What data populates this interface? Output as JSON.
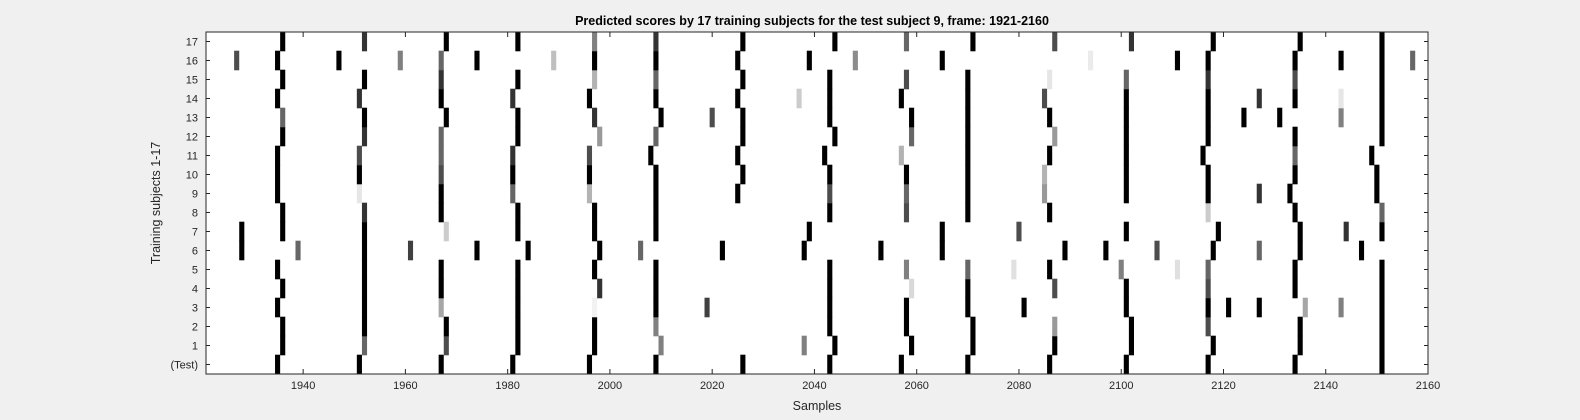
{
  "chart_data": {
    "type": "heatmap",
    "title": "Predicted scores by 17 training subjects for the test subject 9, frame: 1921-2160",
    "xlabel": "Samples",
    "ylabel": "Training subjects 1-17",
    "xlim": [
      1921,
      2160
    ],
    "x_ticks": [
      1940,
      1960,
      1980,
      2000,
      2020,
      2040,
      2060,
      2080,
      2100,
      2120,
      2140,
      2160
    ],
    "rows": [
      "(Test)",
      "1",
      "2",
      "3",
      "4",
      "5",
      "6",
      "7",
      "8",
      "9",
      "10",
      "11",
      "12",
      "13",
      "14",
      "15",
      "16",
      "17"
    ],
    "grid": false,
    "colormap": "white-to-black (intensity = predicted score)",
    "score_range": [
      0,
      1
    ],
    "cells": [
      {
        "row": "(Test)",
        "marks": [
          [
            1935,
            1
          ],
          [
            1951,
            1
          ],
          [
            1967,
            1
          ],
          [
            1981,
            1
          ],
          [
            1996,
            1
          ],
          [
            2009,
            1
          ],
          [
            2026,
            1
          ],
          [
            2043,
            1
          ],
          [
            2057,
            1
          ],
          [
            2070,
            1
          ],
          [
            2086,
            1
          ],
          [
            2101,
            1
          ],
          [
            2117,
            1
          ],
          [
            2134,
            1
          ],
          [
            2151,
            1
          ]
        ]
      },
      {
        "row": "1",
        "marks": [
          [
            1936,
            1
          ],
          [
            1952,
            0.6
          ],
          [
            1968,
            0.7
          ],
          [
            1982,
            1
          ],
          [
            1997,
            1
          ],
          [
            2010,
            0.5
          ],
          [
            2038,
            0.5
          ],
          [
            2044,
            1
          ],
          [
            2059,
            1
          ],
          [
            2071,
            1
          ],
          [
            2087,
            1
          ],
          [
            2102,
            1
          ],
          [
            2118,
            1
          ],
          [
            2135,
            1
          ],
          [
            2151,
            1
          ]
        ]
      },
      {
        "row": "2",
        "marks": [
          [
            1936,
            1
          ],
          [
            1952,
            1
          ],
          [
            1968,
            1
          ],
          [
            1982,
            1
          ],
          [
            1997,
            1
          ],
          [
            2009,
            0.5
          ],
          [
            2043,
            1
          ],
          [
            2058,
            1
          ],
          [
            2071,
            1
          ],
          [
            2087,
            0.4
          ],
          [
            2102,
            1
          ],
          [
            2117,
            0.7
          ],
          [
            2135,
            1
          ],
          [
            2151,
            1
          ]
        ]
      },
      {
        "row": "3",
        "marks": [
          [
            1935,
            1
          ],
          [
            1952,
            1
          ],
          [
            1967,
            0.35
          ],
          [
            1982,
            1
          ],
          [
            1997,
            0.05
          ],
          [
            2009,
            1
          ],
          [
            2019,
            0.75
          ],
          [
            2043,
            1
          ],
          [
            2058,
            1
          ],
          [
            2070,
            1
          ],
          [
            2081,
            1
          ],
          [
            2101,
            1
          ],
          [
            2117,
            1
          ],
          [
            2121,
            1
          ],
          [
            2127,
            1
          ],
          [
            2136,
            0.35
          ],
          [
            2143,
            0.5
          ],
          [
            2151,
            1
          ]
        ]
      },
      {
        "row": "4",
        "marks": [
          [
            1936,
            1
          ],
          [
            1952,
            1
          ],
          [
            1967,
            1
          ],
          [
            1982,
            1
          ],
          [
            1998,
            0.8
          ],
          [
            2009,
            1
          ],
          [
            2043,
            1
          ],
          [
            2059,
            0.15
          ],
          [
            2070,
            1
          ],
          [
            2087,
            0.7
          ],
          [
            2101,
            1
          ],
          [
            2117,
            0.7
          ],
          [
            2134,
            1
          ],
          [
            2151,
            1
          ]
        ]
      },
      {
        "row": "5",
        "marks": [
          [
            1935,
            1
          ],
          [
            1952,
            1
          ],
          [
            1967,
            1
          ],
          [
            1982,
            1
          ],
          [
            1997,
            1
          ],
          [
            2009,
            1
          ],
          [
            2043,
            1
          ],
          [
            2058,
            0.5
          ],
          [
            2070,
            0.6
          ],
          [
            2079,
            0.12
          ],
          [
            2086,
            1
          ],
          [
            2100,
            0.5
          ],
          [
            2111,
            0.12
          ],
          [
            2117,
            0.6
          ],
          [
            2134,
            1
          ],
          [
            2151,
            1
          ]
        ]
      },
      {
        "row": "6",
        "marks": [
          [
            1928,
            1
          ],
          [
            1939,
            0.6
          ],
          [
            1952,
            1
          ],
          [
            1961,
            0.75
          ],
          [
            1974,
            1
          ],
          [
            1984,
            1
          ],
          [
            1998,
            1
          ],
          [
            2006,
            0.6
          ],
          [
            2022,
            1
          ],
          [
            2038,
            1
          ],
          [
            2053,
            1
          ],
          [
            2065,
            1
          ],
          [
            2089,
            1
          ],
          [
            2097,
            1
          ],
          [
            2107,
            0.7
          ],
          [
            2118,
            1
          ],
          [
            2127,
            0.6
          ],
          [
            2135,
            1
          ],
          [
            2147,
            1
          ]
        ]
      },
      {
        "row": "7",
        "marks": [
          [
            1928,
            1
          ],
          [
            1936,
            1
          ],
          [
            1952,
            1
          ],
          [
            1968,
            0.2
          ],
          [
            1982,
            1
          ],
          [
            1997,
            1
          ],
          [
            2009,
            1
          ],
          [
            2039,
            1
          ],
          [
            2065,
            1
          ],
          [
            2080,
            0.7
          ],
          [
            2101,
            1
          ],
          [
            2119,
            1
          ],
          [
            2135,
            1
          ],
          [
            2144,
            0.8
          ],
          [
            2151,
            1
          ]
        ]
      },
      {
        "row": "8",
        "marks": [
          [
            1936,
            1
          ],
          [
            1952,
            0.8
          ],
          [
            1967,
            1
          ],
          [
            1982,
            1
          ],
          [
            1997,
            1
          ],
          [
            2009,
            1
          ],
          [
            2043,
            1
          ],
          [
            2058,
            0.7
          ],
          [
            2070,
            1
          ],
          [
            2086,
            1
          ],
          [
            2117,
            0.2
          ],
          [
            2134,
            1
          ],
          [
            2151,
            0.6
          ]
        ]
      },
      {
        "row": "9",
        "marks": [
          [
            1935,
            1
          ],
          [
            1951,
            0.1
          ],
          [
            1967,
            1
          ],
          [
            1981,
            0.6
          ],
          [
            1996,
            0.3
          ],
          [
            2009,
            1
          ],
          [
            2025,
            1
          ],
          [
            2043,
            0.7
          ],
          [
            2058,
            0.6
          ],
          [
            2070,
            1
          ],
          [
            2085,
            0.4
          ],
          [
            2101,
            1
          ],
          [
            2117,
            1
          ],
          [
            2127,
            0.8
          ],
          [
            2133,
            1
          ],
          [
            2150,
            1
          ]
        ]
      },
      {
        "row": "10",
        "marks": [
          [
            1935,
            1
          ],
          [
            1951,
            1
          ],
          [
            1967,
            0.7
          ],
          [
            1981,
            1
          ],
          [
            1996,
            1
          ],
          [
            2009,
            1
          ],
          [
            2026,
            1
          ],
          [
            2043,
            1
          ],
          [
            2058,
            1
          ],
          [
            2070,
            1
          ],
          [
            2085,
            0.3
          ],
          [
            2101,
            1
          ],
          [
            2117,
            1
          ],
          [
            2134,
            1
          ],
          [
            2150,
            1
          ]
        ]
      },
      {
        "row": "11",
        "marks": [
          [
            1935,
            1
          ],
          [
            1951,
            0.7
          ],
          [
            1967,
            0.6
          ],
          [
            1981,
            0.8
          ],
          [
            1996,
            0.7
          ],
          [
            2008,
            1
          ],
          [
            2025,
            1
          ],
          [
            2042,
            1
          ],
          [
            2057,
            0.3
          ],
          [
            2070,
            1
          ],
          [
            2086,
            1
          ],
          [
            2101,
            1
          ],
          [
            2116,
            1
          ],
          [
            2134,
            0.6
          ],
          [
            2149,
            1
          ]
        ]
      },
      {
        "row": "12",
        "marks": [
          [
            1936,
            1
          ],
          [
            1952,
            0.8
          ],
          [
            1967,
            0.6
          ],
          [
            1982,
            1
          ],
          [
            1998,
            0.4
          ],
          [
            2009,
            0.6
          ],
          [
            2026,
            1
          ],
          [
            2044,
            1
          ],
          [
            2059,
            0.6
          ],
          [
            2070,
            1
          ],
          [
            2087,
            0.4
          ],
          [
            2101,
            1
          ],
          [
            2117,
            1
          ],
          [
            2134,
            1
          ],
          [
            2151,
            1
          ]
        ]
      },
      {
        "row": "13",
        "marks": [
          [
            1936,
            0.6
          ],
          [
            1952,
            1
          ],
          [
            1968,
            1
          ],
          [
            1982,
            1
          ],
          [
            1997,
            0.8
          ],
          [
            2010,
            1
          ],
          [
            2020,
            0.7
          ],
          [
            2026,
            1
          ],
          [
            2043,
            1
          ],
          [
            2059,
            1
          ],
          [
            2070,
            1
          ],
          [
            2086,
            1
          ],
          [
            2101,
            1
          ],
          [
            2117,
            1
          ],
          [
            2124,
            1
          ],
          [
            2131,
            1
          ],
          [
            2143,
            0.5
          ],
          [
            2151,
            1
          ]
        ]
      },
      {
        "row": "14",
        "marks": [
          [
            1935,
            1
          ],
          [
            1951,
            0.8
          ],
          [
            1967,
            1
          ],
          [
            1981,
            0.8
          ],
          [
            1996,
            1
          ],
          [
            2009,
            1
          ],
          [
            2025,
            1
          ],
          [
            2037,
            0.2
          ],
          [
            2043,
            1
          ],
          [
            2057,
            1
          ],
          [
            2070,
            1
          ],
          [
            2085,
            0.7
          ],
          [
            2101,
            1
          ],
          [
            2117,
            1
          ],
          [
            2127,
            0.8
          ],
          [
            2134,
            1
          ],
          [
            2143,
            0.1
          ],
          [
            2151,
            1
          ]
        ]
      },
      {
        "row": "15",
        "marks": [
          [
            1936,
            1
          ],
          [
            1952,
            1
          ],
          [
            1967,
            0.8
          ],
          [
            1982,
            1
          ],
          [
            1997,
            0.3
          ],
          [
            2009,
            0.6
          ],
          [
            2026,
            1
          ],
          [
            2043,
            1
          ],
          [
            2058,
            0.7
          ],
          [
            2070,
            1
          ],
          [
            2086,
            0.1
          ],
          [
            2101,
            0.6
          ],
          [
            2117,
            0.8
          ],
          [
            2134,
            0.7
          ],
          [
            2151,
            1
          ]
        ]
      },
      {
        "row": "16",
        "marks": [
          [
            1927,
            0.7
          ],
          [
            1935,
            1
          ],
          [
            1947,
            1
          ],
          [
            1959,
            0.5
          ],
          [
            1967,
            0.6
          ],
          [
            1974,
            1
          ],
          [
            1989,
            0.25
          ],
          [
            1997,
            1
          ],
          [
            2009,
            1
          ],
          [
            2025,
            1
          ],
          [
            2039,
            1
          ],
          [
            2048,
            0.45
          ],
          [
            2065,
            1
          ],
          [
            2094,
            0.08
          ],
          [
            2111,
            1
          ],
          [
            2117,
            1
          ],
          [
            2134,
            1
          ],
          [
            2143,
            1
          ],
          [
            2151,
            1
          ],
          [
            2157,
            0.6
          ]
        ]
      },
      {
        "row": "17",
        "marks": [
          [
            1936,
            1
          ],
          [
            1952,
            0.8
          ],
          [
            1968,
            1
          ],
          [
            1982,
            1
          ],
          [
            1997,
            0.5
          ],
          [
            2009,
            0.8
          ],
          [
            2026,
            1
          ],
          [
            2044,
            1
          ],
          [
            2058,
            0.6
          ],
          [
            2071,
            1
          ],
          [
            2087,
            0.7
          ],
          [
            2102,
            0.8
          ],
          [
            2118,
            1
          ],
          [
            2135,
            1
          ],
          [
            2151,
            1
          ]
        ]
      }
    ]
  }
}
